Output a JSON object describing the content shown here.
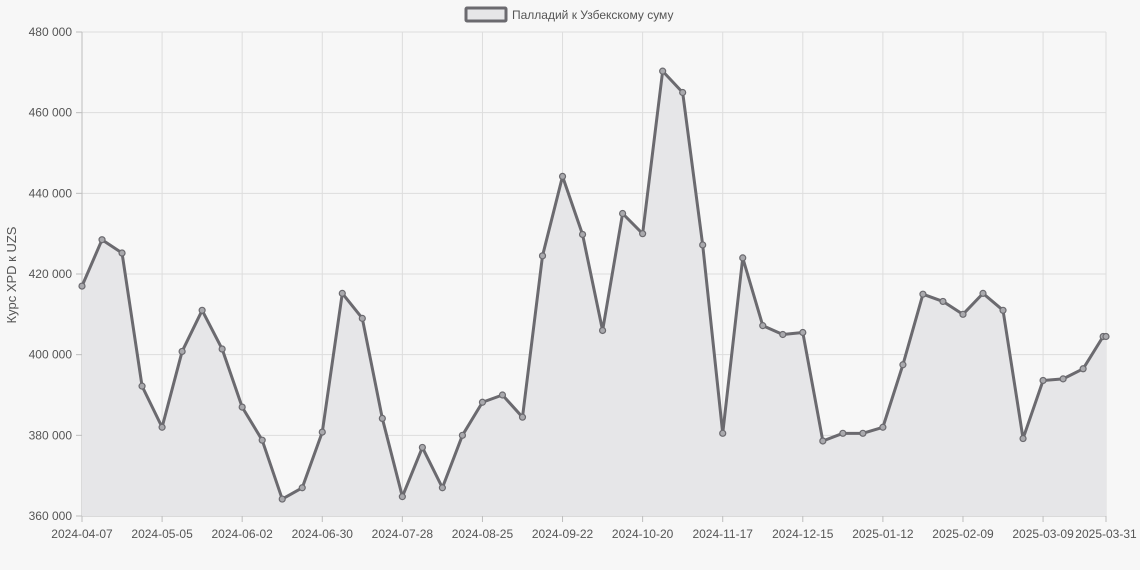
{
  "chart_data": {
    "type": "line",
    "title": "",
    "xlabel": "",
    "ylabel": "Курс XPD к UZS",
    "ylim": [
      360000,
      480000
    ],
    "y_ticks": [
      360000,
      380000,
      400000,
      420000,
      440000,
      460000,
      480000
    ],
    "y_tick_labels": [
      "360 000",
      "380 000",
      "400 000",
      "420 000",
      "440 000",
      "460 000",
      "480 000"
    ],
    "x_tick_labels": [
      "2024-04-07",
      "2024-05-05",
      "2024-06-02",
      "2024-06-30",
      "2024-07-28",
      "2024-08-25",
      "2024-09-22",
      "2024-10-20",
      "2024-11-17",
      "2024-12-15",
      "2025-01-12",
      "2025-02-09",
      "2025-03-09",
      "2025-03-31"
    ],
    "grid": true,
    "legend_position": "top-center",
    "colors": {
      "line": "#6b6a6f",
      "fill": "#e6e6e8",
      "marker_fill": "#a9a9ad"
    },
    "x": [
      "2024-04-07",
      "2024-04-14",
      "2024-04-21",
      "2024-04-28",
      "2024-05-05",
      "2024-05-12",
      "2024-05-19",
      "2024-05-26",
      "2024-06-02",
      "2024-06-09",
      "2024-06-16",
      "2024-06-23",
      "2024-06-30",
      "2024-07-07",
      "2024-07-14",
      "2024-07-21",
      "2024-07-28",
      "2024-08-04",
      "2024-08-11",
      "2024-08-18",
      "2024-08-25",
      "2024-09-01",
      "2024-09-08",
      "2024-09-15",
      "2024-09-22",
      "2024-09-29",
      "2024-10-06",
      "2024-10-13",
      "2024-10-20",
      "2024-10-27",
      "2024-11-03",
      "2024-11-10",
      "2024-11-17",
      "2024-11-24",
      "2024-12-01",
      "2024-12-08",
      "2024-12-15",
      "2024-12-22",
      "2024-12-29",
      "2025-01-05",
      "2025-01-12",
      "2025-01-19",
      "2025-01-26",
      "2025-02-02",
      "2025-02-09",
      "2025-02-16",
      "2025-02-23",
      "2025-03-02",
      "2025-03-09",
      "2025-03-16",
      "2025-03-23",
      "2025-03-30",
      "2025-03-31"
    ],
    "series": [
      {
        "name": "Палладий к Узбекскому суму",
        "values": [
          417000,
          428500,
          425200,
          392200,
          382000,
          400800,
          411000,
          401400,
          387000,
          378800,
          364200,
          367000,
          380800,
          415200,
          409000,
          384200,
          364800,
          377000,
          367000,
          380000,
          388200,
          390000,
          384500,
          424500,
          444200,
          429800,
          406000,
          435000,
          430000,
          470300,
          465000,
          427200,
          380500,
          424000,
          407200,
          405000,
          405500,
          378600,
          380500,
          380500,
          382000,
          397500,
          415000,
          413200,
          410000,
          415200,
          411000,
          379200,
          393600,
          394000,
          396500,
          404500,
          404500
        ]
      }
    ]
  }
}
